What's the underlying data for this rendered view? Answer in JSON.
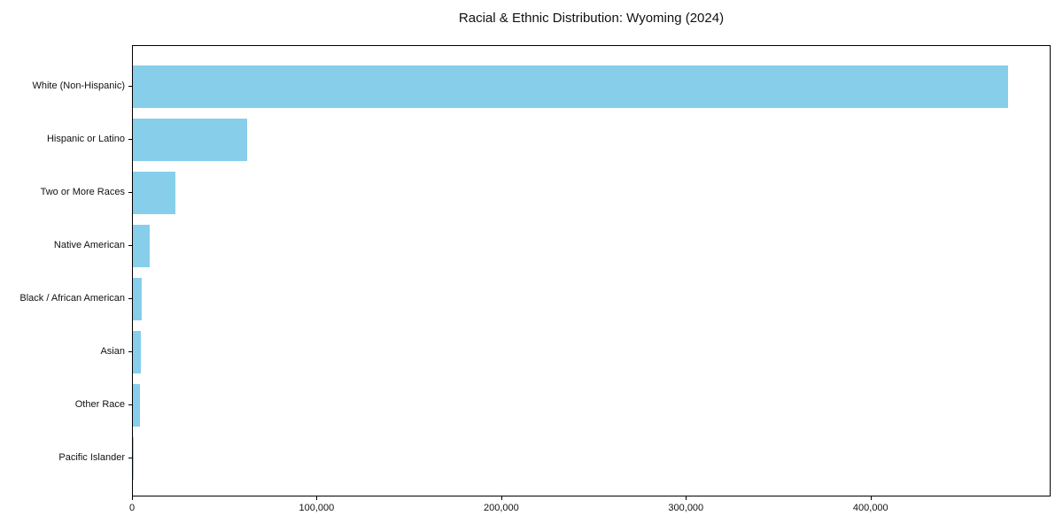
{
  "chart_data": {
    "type": "bar",
    "orientation": "horizontal",
    "title": "Racial & Ethnic Distribution: Wyoming (2024)",
    "categories": [
      "White (Non-Hispanic)",
      "Hispanic or Latino",
      "Two or More Races",
      "Native American",
      "Black / African American",
      "Asian",
      "Other Race",
      "Pacific Islander"
    ],
    "values": [
      474000,
      62000,
      23000,
      9100,
      4800,
      4400,
      3700,
      500
    ],
    "xlabel": "",
    "ylabel": "",
    "xlim": [
      0,
      497500
    ],
    "xticks": [
      0,
      100000,
      200000,
      300000,
      400000
    ],
    "xtick_labels": [
      "0",
      "100,000",
      "200,000",
      "300,000",
      "400,000"
    ],
    "bar_color": "#87CEEB",
    "frame_color": "#000000",
    "grid": false,
    "legend": null
  }
}
